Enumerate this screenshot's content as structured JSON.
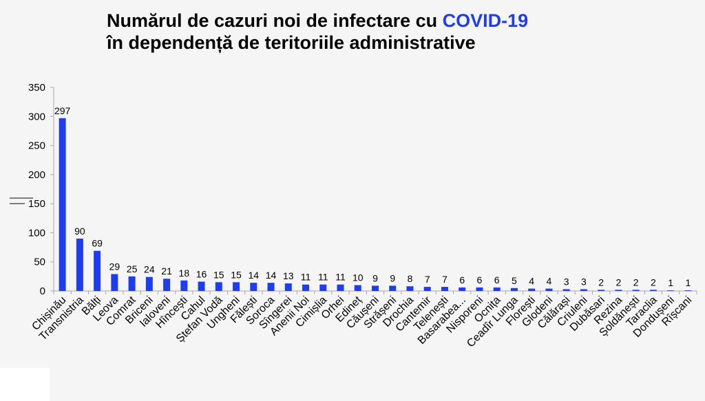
{
  "title": {
    "line1_part1": "Numărul de cazuri noi de infectare cu ",
    "line1_accent": "COVID-19",
    "line2": "în dependență de teritoriile administrative"
  },
  "colors": {
    "bar": "#1f3df0",
    "accent": "#1f3df0",
    "axis": "#a6a6a6",
    "text": "#000000"
  },
  "chart_data": {
    "type": "bar",
    "title": "Numărul de cazuri noi de infectare cu COVID-19 în dependență de teritoriile administrative",
    "xlabel": "",
    "ylabel": "",
    "ylim": [
      0,
      350
    ],
    "yticks": [
      0,
      50,
      100,
      150,
      200,
      250,
      300,
      350
    ],
    "grid": false,
    "categories": [
      "Chișinău",
      "Transnistria",
      "Bălți",
      "Leova",
      "Comrat",
      "Briceni",
      "Ialoveni",
      "Hîncești",
      "Cahul",
      "Ștefan Vodă",
      "Ungheni",
      "Fălești",
      "Soroca",
      "Sîngerei",
      "Anenii Noi",
      "Cimișlia",
      "Orhei",
      "Edineț",
      "Căușeni",
      "Strășeni",
      "Drochia",
      "Cantemir",
      "Telenești",
      "Basarabea...",
      "Nisporeni",
      "Ocnița",
      "Ceadîr Lunga",
      "Florești",
      "Glodeni",
      "Călărași",
      "Criuleni",
      "Dubăsari",
      "Rezina",
      "Șoldănești",
      "Taraclia",
      "Dondușeni",
      "Rîșcani"
    ],
    "values": [
      297,
      90,
      69,
      29,
      25,
      24,
      21,
      18,
      16,
      15,
      15,
      14,
      14,
      13,
      11,
      11,
      11,
      10,
      9,
      9,
      8,
      7,
      7,
      6,
      6,
      6,
      5,
      4,
      4,
      3,
      3,
      2,
      2,
      2,
      2,
      1,
      1
    ]
  }
}
